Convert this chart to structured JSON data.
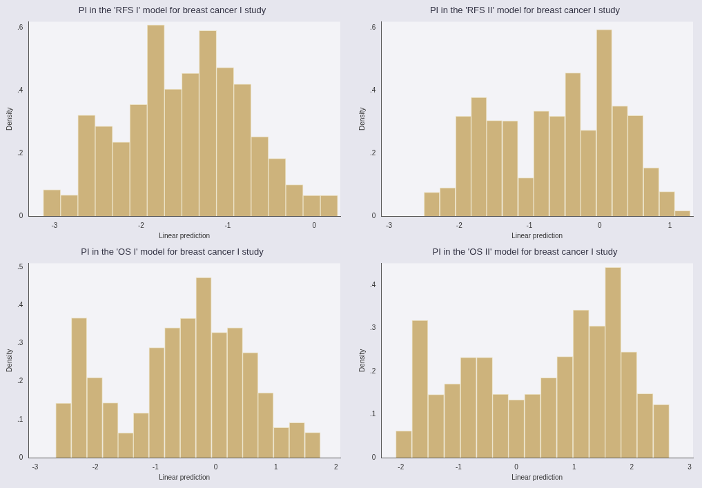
{
  "chart_data": [
    {
      "type": "histogram",
      "title": "PI in the 'RFS I' model for breast cancer I study",
      "xlabel": "Linear prediction",
      "ylabel": "Density",
      "color": "#cdb37c",
      "bins": [
        -3.13,
        -2.93,
        -2.73,
        -2.53,
        -2.33,
        -2.13,
        -1.93,
        -1.73,
        -1.53,
        -1.33,
        -1.13,
        -0.93,
        -0.73,
        -0.53,
        -0.33,
        -0.13,
        0.07,
        0.27
      ],
      "values": [
        0.084,
        0.067,
        0.322,
        0.287,
        0.236,
        0.356,
        0.61,
        0.405,
        0.456,
        0.592,
        0.474,
        0.421,
        0.253,
        0.184,
        0.1,
        0.066,
        0.066
      ],
      "xlim": [
        -3.3,
        0.3
      ],
      "xticks": [
        -3,
        -2,
        -1,
        0
      ],
      "ylim": [
        0,
        0.62
      ],
      "yticks": [
        {
          "value": 0,
          "label": "0"
        },
        {
          "value": 0.2,
          "label": ".2"
        },
        {
          "value": 0.4,
          "label": ".4"
        },
        {
          "value": 0.6,
          "label": ".6"
        }
      ]
    },
    {
      "type": "histogram",
      "title": "PI in the 'RFS II' model for breast cancer I study",
      "xlabel": "Linear prediction",
      "ylabel": "Density",
      "color": "#cdb37c",
      "bins": [
        -2.5,
        -2.28,
        -2.05,
        -1.83,
        -1.61,
        -1.39,
        -1.16,
        -0.94,
        -0.72,
        -0.49,
        -0.27,
        -0.05,
        0.18,
        0.4,
        0.62,
        0.85,
        1.07,
        1.29
      ],
      "values": [
        0.076,
        0.09,
        0.319,
        0.379,
        0.305,
        0.304,
        0.122,
        0.335,
        0.319,
        0.457,
        0.274,
        0.595,
        0.351,
        0.321,
        0.154,
        0.078,
        0.017
      ],
      "xlim": [
        -3.11,
        1.33
      ],
      "xticks": [
        -3,
        -2,
        -1,
        0,
        1
      ],
      "ylim": [
        0,
        0.62
      ],
      "yticks": [
        {
          "value": 0,
          "label": "0"
        },
        {
          "value": 0.2,
          "label": ".2"
        },
        {
          "value": 0.4,
          "label": ".4"
        },
        {
          "value": 0.6,
          "label": ".6"
        }
      ]
    },
    {
      "type": "histogram",
      "title": "PI in the 'OS I' model for breast cancer I study",
      "xlabel": "Linear prediction",
      "ylabel": "Density",
      "color": "#cdb37c",
      "bins": [
        -2.66,
        -2.4,
        -2.14,
        -1.88,
        -1.62,
        -1.37,
        -1.11,
        -0.85,
        -0.59,
        -0.33,
        -0.07,
        0.19,
        0.45,
        0.7,
        0.96,
        1.22,
        1.48,
        1.74
      ],
      "values": [
        0.143,
        0.367,
        0.21,
        0.144,
        0.065,
        0.117,
        0.289,
        0.341,
        0.366,
        0.473,
        0.329,
        0.341,
        0.276,
        0.17,
        0.079,
        0.092,
        0.066
      ],
      "xlim": [
        -3.11,
        2.07
      ],
      "xticks": [
        -3,
        -2,
        -1,
        0,
        1,
        2
      ],
      "ylim": [
        0,
        0.51
      ],
      "yticks": [
        {
          "value": 0,
          "label": "0"
        },
        {
          "value": 0.1,
          "label": ".1"
        },
        {
          "value": 0.2,
          "label": ".2"
        },
        {
          "value": 0.3,
          "label": ".3"
        },
        {
          "value": 0.4,
          "label": ".4"
        },
        {
          "value": 0.5,
          "label": ".5"
        }
      ]
    },
    {
      "type": "histogram",
      "title": "PI in the 'OS II' model for breast cancer I study",
      "xlabel": "Linear prediction",
      "ylabel": "Density",
      "color": "#cdb37c",
      "bins": [
        -2.09,
        -1.81,
        -1.53,
        -1.25,
        -0.97,
        -0.69,
        -0.41,
        -0.14,
        0.14,
        0.42,
        0.7,
        0.98,
        1.26,
        1.54,
        1.81,
        2.09,
        2.37,
        2.65
      ],
      "values": [
        0.062,
        0.318,
        0.146,
        0.171,
        0.232,
        0.232,
        0.147,
        0.134,
        0.147,
        0.185,
        0.234,
        0.342,
        0.305,
        0.441,
        0.245,
        0.148,
        0.123
      ],
      "xlim": [
        -2.34,
        3.06
      ],
      "xticks": [
        -2,
        -1,
        0,
        1,
        2,
        3
      ],
      "ylim": [
        0,
        0.45
      ],
      "yticks": [
        {
          "value": 0,
          "label": "0"
        },
        {
          "value": 0.1,
          "label": ".1"
        },
        {
          "value": 0.2,
          "label": ".2"
        },
        {
          "value": 0.3,
          "label": ".3"
        },
        {
          "value": 0.4,
          "label": ".4"
        }
      ]
    }
  ]
}
